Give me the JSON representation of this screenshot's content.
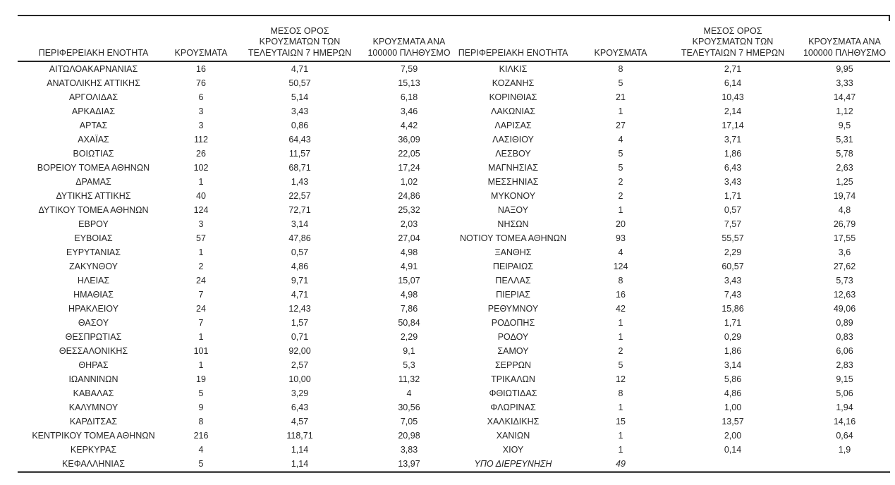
{
  "page": {
    "background": "#ffffff",
    "text_color": "#262626",
    "border_color": "#262626"
  },
  "table": {
    "headers": [
      {
        "lines": [
          "ΠΕΡΙΦΕΡΕΙΑΚΗ ΕΝΟΤΗΤΑ"
        ]
      },
      {
        "lines": [
          "ΚΡΟΥΣΜΑΤΑ"
        ]
      },
      {
        "lines": [
          "ΜΕΣΟΣ ΟΡΟΣ",
          "ΚΡΟΥΣΜΑΤΩΝ ΤΩΝ",
          "ΤΕΛΕΥΤΑΙΩΝ 7 ΗΜΕΡΩΝ"
        ]
      },
      {
        "lines": [
          "ΚΡΟΥΣΜΑΤΑ ΑΝΑ",
          "100000 ΠΛΗΘΥΣΜΟ"
        ]
      }
    ],
    "left_rows": [
      [
        "ΑΙΤΩΛΟΑΚΑΡΝΑΝΙΑΣ",
        "16",
        "4,71",
        "7,59"
      ],
      [
        "ΑΝΑΤΟΛΙΚΗΣ ΑΤΤΙΚΗΣ",
        "76",
        "50,57",
        "15,13"
      ],
      [
        "ΑΡΓΟΛΙΔΑΣ",
        "6",
        "5,14",
        "6,18"
      ],
      [
        "ΑΡΚΑΔΙΑΣ",
        "3",
        "3,43",
        "3,46"
      ],
      [
        "ΑΡΤΑΣ",
        "3",
        "0,86",
        "4,42"
      ],
      [
        "ΑΧΑΪΑΣ",
        "112",
        "64,43",
        "36,09"
      ],
      [
        "ΒΟΙΩΤΙΑΣ",
        "26",
        "11,57",
        "22,05"
      ],
      [
        "ΒΟΡΕΙΟΥ ΤΟΜΕΑ ΑΘΗΝΩΝ",
        "102",
        "68,71",
        "17,24"
      ],
      [
        "ΔΡΑΜΑΣ",
        "1",
        "1,43",
        "1,02"
      ],
      [
        "ΔΥΤΙΚΗΣ ΑΤΤΙΚΗΣ",
        "40",
        "22,57",
        "24,86"
      ],
      [
        "ΔΥΤΙΚΟΥ ΤΟΜΕΑ ΑΘΗΝΩΝ",
        "124",
        "72,71",
        "25,32"
      ],
      [
        "ΕΒΡΟΥ",
        "3",
        "3,14",
        "2,03"
      ],
      [
        "ΕΥΒΟΙΑΣ",
        "57",
        "47,86",
        "27,04"
      ],
      [
        "ΕΥΡΥΤΑΝΙΑΣ",
        "1",
        "0,57",
        "4,98"
      ],
      [
        "ΖΑΚΥΝΘΟΥ",
        "2",
        "4,86",
        "4,91"
      ],
      [
        "ΗΛΕΙΑΣ",
        "24",
        "9,71",
        "15,07"
      ],
      [
        "ΗΜΑΘΙΑΣ",
        "7",
        "4,71",
        "4,98"
      ],
      [
        "ΗΡΑΚΛΕΙΟΥ",
        "24",
        "12,43",
        "7,86"
      ],
      [
        "ΘΑΣΟΥ",
        "7",
        "1,57",
        "50,84"
      ],
      [
        "ΘΕΣΠΡΩΤΙΑΣ",
        "1",
        "0,71",
        "2,29"
      ],
      [
        "ΘΕΣΣΑΛΟΝΙΚΗΣ",
        "101",
        "92,00",
        "9,1"
      ],
      [
        "ΘΗΡΑΣ",
        "1",
        "2,57",
        "5,3"
      ],
      [
        "ΙΩΑΝΝΙΝΩΝ",
        "19",
        "10,00",
        "11,32"
      ],
      [
        "ΚΑΒΑΛΑΣ",
        "5",
        "3,29",
        "4"
      ],
      [
        "ΚΑΛΥΜΝΟΥ",
        "9",
        "6,43",
        "30,56"
      ],
      [
        "ΚΑΡΔΙΤΣΑΣ",
        "8",
        "4,57",
        "7,05"
      ],
      [
        "ΚΕΝΤΡΙΚΟΥ ΤΟΜΕΑ ΑΘΗΝΩΝ",
        "216",
        "118,71",
        "20,98"
      ],
      [
        "ΚΕΡΚΥΡΑΣ",
        "4",
        "1,14",
        "3,83"
      ],
      [
        "ΚΕΦΑΛΛΗΝΙΑΣ",
        "5",
        "1,14",
        "13,97"
      ]
    ],
    "right_rows": [
      [
        "ΚΙΛΚΙΣ",
        "8",
        "2,71",
        "9,95"
      ],
      [
        "ΚΟΖΑΝΗΣ",
        "5",
        "6,14",
        "3,33"
      ],
      [
        "ΚΟΡΙΝΘΙΑΣ",
        "21",
        "10,43",
        "14,47"
      ],
      [
        "ΛΑΚΩΝΙΑΣ",
        "1",
        "2,14",
        "1,12"
      ],
      [
        "ΛΑΡΙΣΑΣ",
        "27",
        "17,14",
        "9,5"
      ],
      [
        "ΛΑΣΙΘΙΟΥ",
        "4",
        "3,71",
        "5,31"
      ],
      [
        "ΛΕΣΒΟΥ",
        "5",
        "1,86",
        "5,78"
      ],
      [
        "ΜΑΓΝΗΣΙΑΣ",
        "5",
        "6,43",
        "2,63"
      ],
      [
        "ΜΕΣΣΗΝΙΑΣ",
        "2",
        "3,43",
        "1,25"
      ],
      [
        "ΜΥΚΟΝΟΥ",
        "2",
        "1,71",
        "19,74"
      ],
      [
        "ΝΑΞΟΥ",
        "1",
        "0,57",
        "4,8"
      ],
      [
        "ΝΗΣΩΝ",
        "20",
        "7,57",
        "26,79"
      ],
      [
        "ΝΟΤΙΟΥ ΤΟΜΕΑ ΑΘΗΝΩΝ",
        "93",
        "55,57",
        "17,55"
      ],
      [
        "ΞΑΝΘΗΣ",
        "4",
        "2,29",
        "3,6"
      ],
      [
        "ΠΕΙΡΑΙΩΣ",
        "124",
        "60,57",
        "27,62"
      ],
      [
        "ΠΕΛΛΑΣ",
        "8",
        "3,43",
        "5,73"
      ],
      [
        "ΠΙΕΡΙΑΣ",
        "16",
        "7,43",
        "12,63"
      ],
      [
        "ΡΕΘΥΜΝΟΥ",
        "42",
        "15,86",
        "49,06"
      ],
      [
        "ΡΟΔΟΠΗΣ",
        "1",
        "1,71",
        "0,89"
      ],
      [
        "ΡΟΔΟΥ",
        "1",
        "0,29",
        "0,83"
      ],
      [
        "ΣΑΜΟΥ",
        "2",
        "1,86",
        "6,06"
      ],
      [
        "ΣΕΡΡΩΝ",
        "5",
        "3,14",
        "2,83"
      ],
      [
        "ΤΡΙΚΑΛΩΝ",
        "12",
        "5,86",
        "9,15"
      ],
      [
        "ΦΘΙΩΤΙΔΑΣ",
        "8",
        "4,86",
        "5,06"
      ],
      [
        "ΦΛΩΡΙΝΑΣ",
        "1",
        "1,00",
        "1,94"
      ],
      [
        "ΧΑΛΚΙΔΙΚΗΣ",
        "15",
        "13,57",
        "14,16"
      ],
      [
        "ΧΑΝΙΩΝ",
        "1",
        "2,00",
        "0,64"
      ],
      [
        "ΧΙΟΥ",
        "1",
        "0,14",
        "1,9"
      ],
      [
        "ΥΠΟ ΔΙΕΡΕΥΝΗΣΗ",
        "49",
        "",
        ""
      ]
    ],
    "italic_right_row_index": 28
  }
}
